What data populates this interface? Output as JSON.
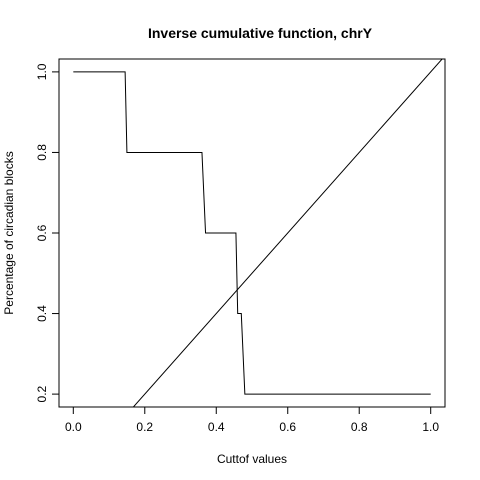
{
  "chart_data": {
    "type": "line",
    "title": "Inverse cumulative function, chrY",
    "xlabel": "Cuttof values",
    "ylabel": "Percentage of circadian blocks",
    "xlim": [
      -0.04,
      1.04
    ],
    "ylim": [
      0.168,
      1.032
    ],
    "x_ticks": [
      "0.0",
      "0.2",
      "0.4",
      "0.6",
      "0.8",
      "1.0"
    ],
    "y_ticks": [
      "0.2",
      "0.4",
      "0.6",
      "0.8",
      "1.0"
    ],
    "grid": false,
    "legend": "none",
    "series": [
      {
        "style": "step",
        "points": [
          [
            0.0,
            1.0
          ],
          [
            0.145,
            1.0
          ],
          [
            0.15,
            0.8
          ],
          [
            0.36,
            0.8
          ],
          [
            0.37,
            0.6
          ],
          [
            0.455,
            0.6
          ],
          [
            0.46,
            0.4
          ],
          [
            0.47,
            0.4
          ],
          [
            0.48,
            0.2
          ],
          [
            1.0,
            0.2
          ]
        ]
      },
      {
        "style": "line",
        "points": [
          [
            0.0,
            0.0
          ],
          [
            1.04,
            1.04
          ]
        ]
      }
    ],
    "colors": {
      "line": "#000000",
      "background": "#ffffff"
    }
  }
}
